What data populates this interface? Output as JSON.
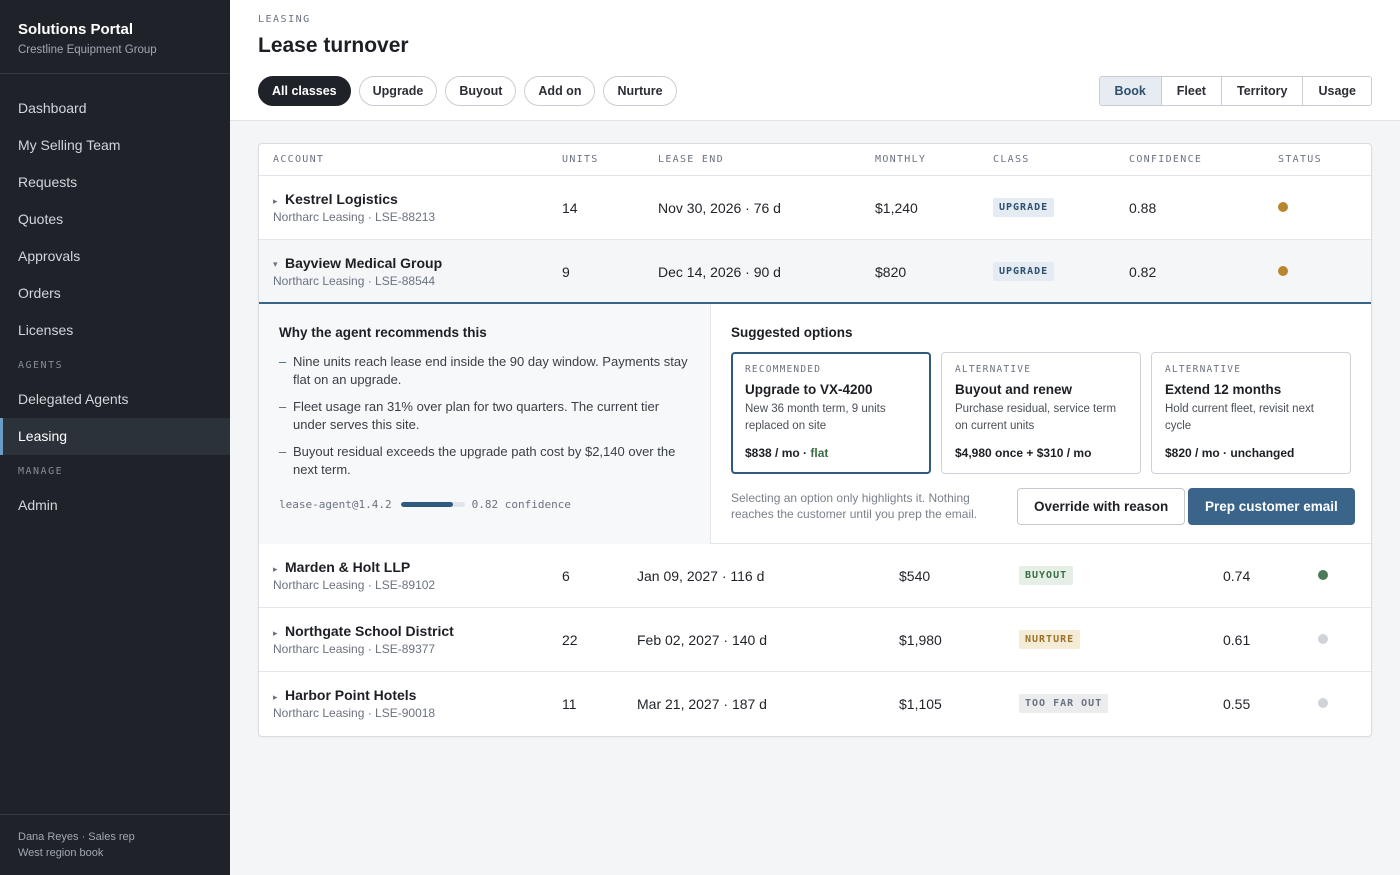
{
  "app": {
    "title": "Solutions Portal",
    "org": "Crestline Equipment Group"
  },
  "sidebar": {
    "items": [
      {
        "label": "Dashboard"
      },
      {
        "label": "My Selling Team"
      },
      {
        "label": "Requests"
      },
      {
        "label": "Quotes"
      },
      {
        "label": "Approvals"
      },
      {
        "label": "Orders"
      },
      {
        "label": "Licenses"
      }
    ],
    "sections": {
      "agents": "AGENTS",
      "manage": "MANAGE"
    },
    "agent_items": [
      {
        "label": "Delegated Agents"
      },
      {
        "label": "Leasing",
        "active": true
      }
    ],
    "manage_items": [
      {
        "label": "Admin"
      }
    ],
    "footer": {
      "user": "Dana Reyes · Sales rep",
      "book": "West region book"
    }
  },
  "header": {
    "eyebrow": "LEASING",
    "title": "Lease turnover",
    "filters": [
      "All classes",
      "Upgrade",
      "Buyout",
      "Add on",
      "Nurture"
    ],
    "active_filter": "All classes",
    "views": [
      "Book",
      "Fleet",
      "Territory",
      "Usage"
    ],
    "active_view": "Book"
  },
  "table": {
    "columns": [
      "ACCOUNT",
      "UNITS",
      "LEASE END",
      "MONTHLY",
      "CLASS",
      "CONFIDENCE",
      "STATUS"
    ],
    "rows": [
      {
        "account": "Kestrel Logistics",
        "sub": "Northarc Leasing · LSE-88213",
        "units": "14",
        "lease_end": "Nov 30, 2026 · 76 d",
        "monthly": "$1,240",
        "class": "UPGRADE",
        "confidence": "0.88",
        "status_color": "#b8862e"
      },
      {
        "account": "Bayview Medical Group",
        "sub": "Northarc Leasing · LSE-88544",
        "units": "9",
        "lease_end": "Dec 14, 2026 · 90 d",
        "monthly": "$820",
        "class": "UPGRADE",
        "confidence": "0.82",
        "status_color": "#b8862e"
      },
      {
        "account": "Marden & Holt LLP",
        "sub": "Northarc Leasing · LSE-89102",
        "units": "6",
        "lease_end": "Jan 09, 2027 · 116 d",
        "monthly": "$540",
        "class": "BUYOUT",
        "confidence": "0.74",
        "status_color": "#4b7a57"
      },
      {
        "account": "Northgate School District",
        "sub": "Northarc Leasing · LSE-89377",
        "units": "22",
        "lease_end": "Feb 02, 2027 · 140 d",
        "monthly": "$1,980",
        "class": "NURTURE",
        "confidence": "0.61",
        "status_color": "#d0d3d8"
      },
      {
        "account": "Harbor Point Hotels",
        "sub": "Northarc Leasing · LSE-90018",
        "units": "11",
        "lease_end": "Mar 21, 2027 · 187 d",
        "monthly": "$1,105",
        "class": "TOO FAR OUT",
        "confidence": "0.55",
        "status_color": "#d0d3d8"
      }
    ]
  },
  "detail": {
    "why_title": "Why the agent recommends this",
    "reasons": [
      "Nine units reach lease end inside the 90 day window. Payments stay flat on an upgrade.",
      "Fleet usage ran 31% over plan for two quarters. The current tier under serves this site.",
      "Buyout residual exceeds the upgrade path cost by $2,140 over the next term."
    ],
    "agent_version": "lease-agent@1.4.2",
    "confidence": 0.82,
    "confidence_label": "0.82 confidence",
    "options_title": "Suggested options",
    "options": [
      {
        "kicker": "RECOMMENDED",
        "title": "Upgrade to VX-4200",
        "desc": "New 36 month term, 9 units replaced on site",
        "price": "$838 / mo · ",
        "price_tag": "flat",
        "selected": true
      },
      {
        "kicker": "ALTERNATIVE",
        "title": "Buyout and renew",
        "desc": "Purchase residual, service term on current units",
        "price": "$4,980 once + $310 / mo",
        "price_tag": ""
      },
      {
        "kicker": "ALTERNATIVE",
        "title": "Extend 12 months",
        "desc": "Hold current fleet, revisit next cycle",
        "price": "$820 / mo · unchanged",
        "price_tag": ""
      }
    ],
    "note": "Selecting an option only highlights it. Nothing reaches the customer until you prep the email.",
    "override_label": "Override with reason",
    "prep_label": "Prep customer email"
  }
}
